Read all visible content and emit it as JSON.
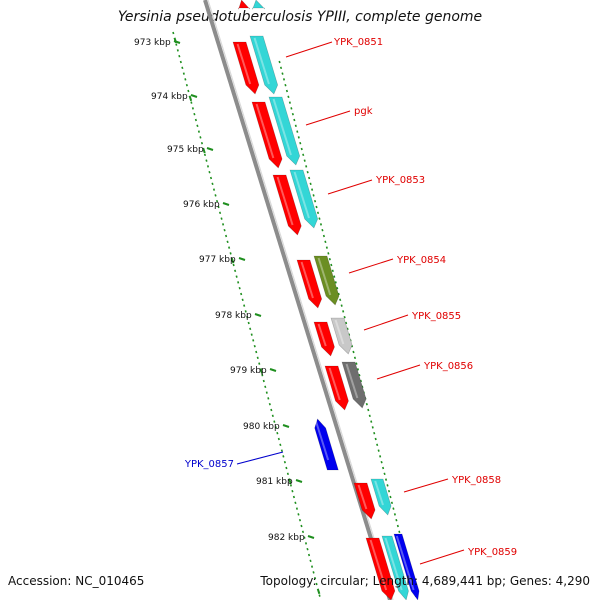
{
  "title": "Yersinia pseudotuberculosis YPIII, complete genome",
  "footer": {
    "accession": "Accession: NC_010465",
    "topology": "Topology: circular; Length: 4,689,441 bp; Genes: 4,290"
  },
  "colors": {
    "axis_tick": "#1f8f1f",
    "backbone": "#8c8c8c",
    "gene_red": "#ff0000",
    "gene_cyan": "#33d6d6",
    "gene_olive": "#6b8e23",
    "gene_lightgray": "#c8c8c8",
    "gene_darkgray": "#6e6e6e",
    "gene_blue": "#0000ee",
    "label_red": "#e00000",
    "label_blue": "#0000cc"
  },
  "ruler": [
    "973 kbp",
    "974 kbp",
    "975 kbp",
    "976 kbp",
    "977 kbp",
    "978 kbp",
    "979 kbp",
    "980 kbp",
    "981 kbp",
    "982 kbp"
  ],
  "genes": [
    {
      "name": "YPK_0851",
      "label_color": "red"
    },
    {
      "name": "pgk",
      "label_color": "red"
    },
    {
      "name": "YPK_0853",
      "label_color": "red"
    },
    {
      "name": "YPK_0854",
      "label_color": "red"
    },
    {
      "name": "YPK_0855",
      "label_color": "red"
    },
    {
      "name": "YPK_0856",
      "label_color": "red"
    },
    {
      "name": "YPK_0857",
      "label_color": "blue"
    },
    {
      "name": "YPK_0858",
      "label_color": "red"
    },
    {
      "name": "YPK_0859",
      "label_color": "red"
    }
  ]
}
